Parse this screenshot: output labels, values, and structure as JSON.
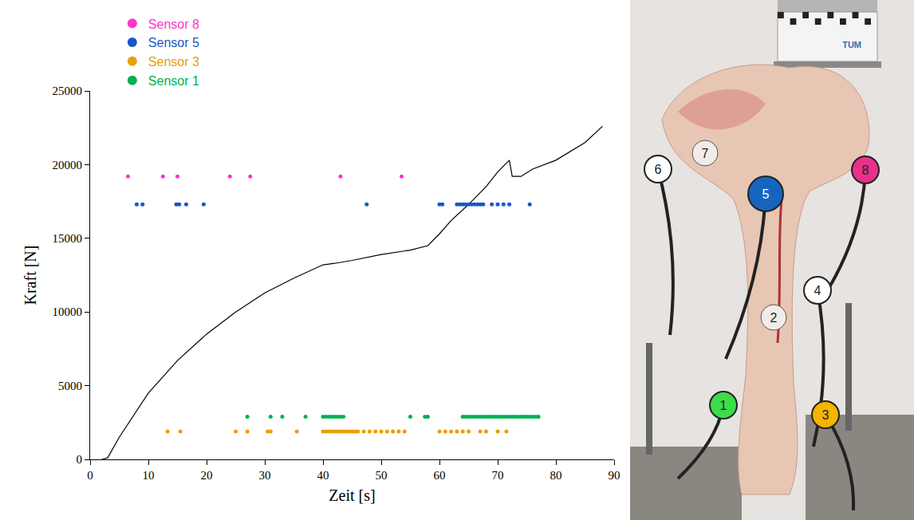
{
  "chart_data": {
    "type": "scatter",
    "x_label": "Zeit [s]",
    "y_label": "Kraft [N]",
    "xlim": [
      0,
      90
    ],
    "xticks": [
      0,
      10,
      20,
      30,
      40,
      50,
      60,
      70,
      80,
      90
    ],
    "ylim": [
      0,
      25000
    ],
    "yticks": [
      0,
      5000,
      10000,
      15000,
      20000,
      25000
    ],
    "grid": false,
    "legend": "top left",
    "series": [
      {
        "type": "line",
        "color": "#000000",
        "x": [
          2,
          3,
          5,
          8,
          10,
          15,
          20,
          25,
          30,
          35,
          40,
          42,
          45,
          50,
          55,
          58,
          60,
          62,
          65,
          68,
          70,
          72,
          72.5,
          74,
          76,
          80,
          85,
          88
        ],
        "values": [
          0,
          100,
          1500,
          3300,
          4500,
          6700,
          8500,
          10000,
          11300,
          12300,
          13200,
          13300,
          13500,
          13900,
          14200,
          14500,
          15300,
          16200,
          17300,
          18500,
          19500,
          20300,
          19200,
          19200,
          19700,
          20300,
          21500,
          22600
        ]
      },
      {
        "name": "Sensor 8",
        "type": "scatter",
        "color": "#ff33cc",
        "x": [
          6.5,
          12.5,
          15,
          24,
          27.5,
          43,
          53.5
        ],
        "values": [
          19200,
          19200,
          19200,
          19200,
          19200,
          19200,
          19200
        ]
      },
      {
        "name": "Sensor 5",
        "type": "scatter",
        "color": "#1a56c8",
        "x": [
          8,
          9,
          14.8,
          15.3,
          16.5,
          19.5,
          47.5,
          60,
          60.5,
          63,
          63.5,
          64,
          64.5,
          65,
          65.5,
          66,
          66.5,
          67,
          67.5,
          69,
          70,
          71,
          72,
          75.5
        ],
        "values": [
          17300,
          17300,
          17300,
          17300,
          17300,
          17300,
          17300,
          17300,
          17300,
          17300,
          17300,
          17300,
          17300,
          17300,
          17300,
          17300,
          17300,
          17300,
          17300,
          17300,
          17300,
          17300,
          17300,
          17300
        ]
      },
      {
        "name": "Sensor 3",
        "type": "scatter",
        "color": "#e8a000",
        "x": [
          13.3,
          15.5,
          25,
          27,
          30.5,
          31,
          35.5,
          40,
          40.5,
          41,
          41.5,
          42,
          42.5,
          43,
          43.5,
          44,
          44.5,
          45,
          45.5,
          46,
          47,
          48,
          49,
          50,
          51,
          52,
          53,
          54,
          60,
          61,
          62,
          63,
          64,
          65,
          67,
          68,
          70,
          71.5
        ],
        "values": [
          1900,
          1900,
          1900,
          1900,
          1900,
          1900,
          1900,
          1900,
          1900,
          1900,
          1900,
          1900,
          1900,
          1900,
          1900,
          1900,
          1900,
          1900,
          1900,
          1900,
          1900,
          1900,
          1900,
          1900,
          1900,
          1900,
          1900,
          1900,
          1900,
          1900,
          1900,
          1900,
          1900,
          1900,
          1900,
          1900,
          1900,
          1900
        ]
      },
      {
        "name": "Sensor 1",
        "type": "scatter",
        "color": "#00b050",
        "x": [
          27,
          31,
          33,
          37,
          40,
          40.5,
          41,
          41.5,
          42,
          42.5,
          43,
          43.5,
          55,
          57.5,
          58,
          64,
          64.5,
          65,
          65.5,
          66,
          66.5,
          67,
          67.5,
          68,
          68.5,
          69,
          69.5,
          70,
          70.5,
          71,
          71.5,
          72,
          72.5,
          73,
          73.5,
          74,
          74.5,
          75,
          75.5,
          76,
          76.5,
          77
        ],
        "values": [
          2900,
          2900,
          2900,
          2900,
          2900,
          2900,
          2900,
          2900,
          2900,
          2900,
          2900,
          2900,
          2900,
          2900,
          2900,
          2900,
          2900,
          2900,
          2900,
          2900,
          2900,
          2900,
          2900,
          2900,
          2900,
          2900,
          2900,
          2900,
          2900,
          2900,
          2900,
          2900,
          2900,
          2900,
          2900,
          2900,
          2900,
          2900,
          2900,
          2900,
          2900,
          2900
        ]
      }
    ]
  },
  "photo": {
    "machine_label": "TUM",
    "sensors": [
      {
        "label": "1",
        "color": "#3ddc4a"
      },
      {
        "label": "2",
        "color": "#f2ece8"
      },
      {
        "label": "3",
        "color": "#f5b400"
      },
      {
        "label": "4",
        "color": "#ffffff"
      },
      {
        "label": "5",
        "color": "#1565c0"
      },
      {
        "label": "6",
        "color": "#ffffff"
      },
      {
        "label": "7",
        "color": "#f2ece8"
      },
      {
        "label": "8",
        "color": "#e8308c"
      }
    ]
  }
}
